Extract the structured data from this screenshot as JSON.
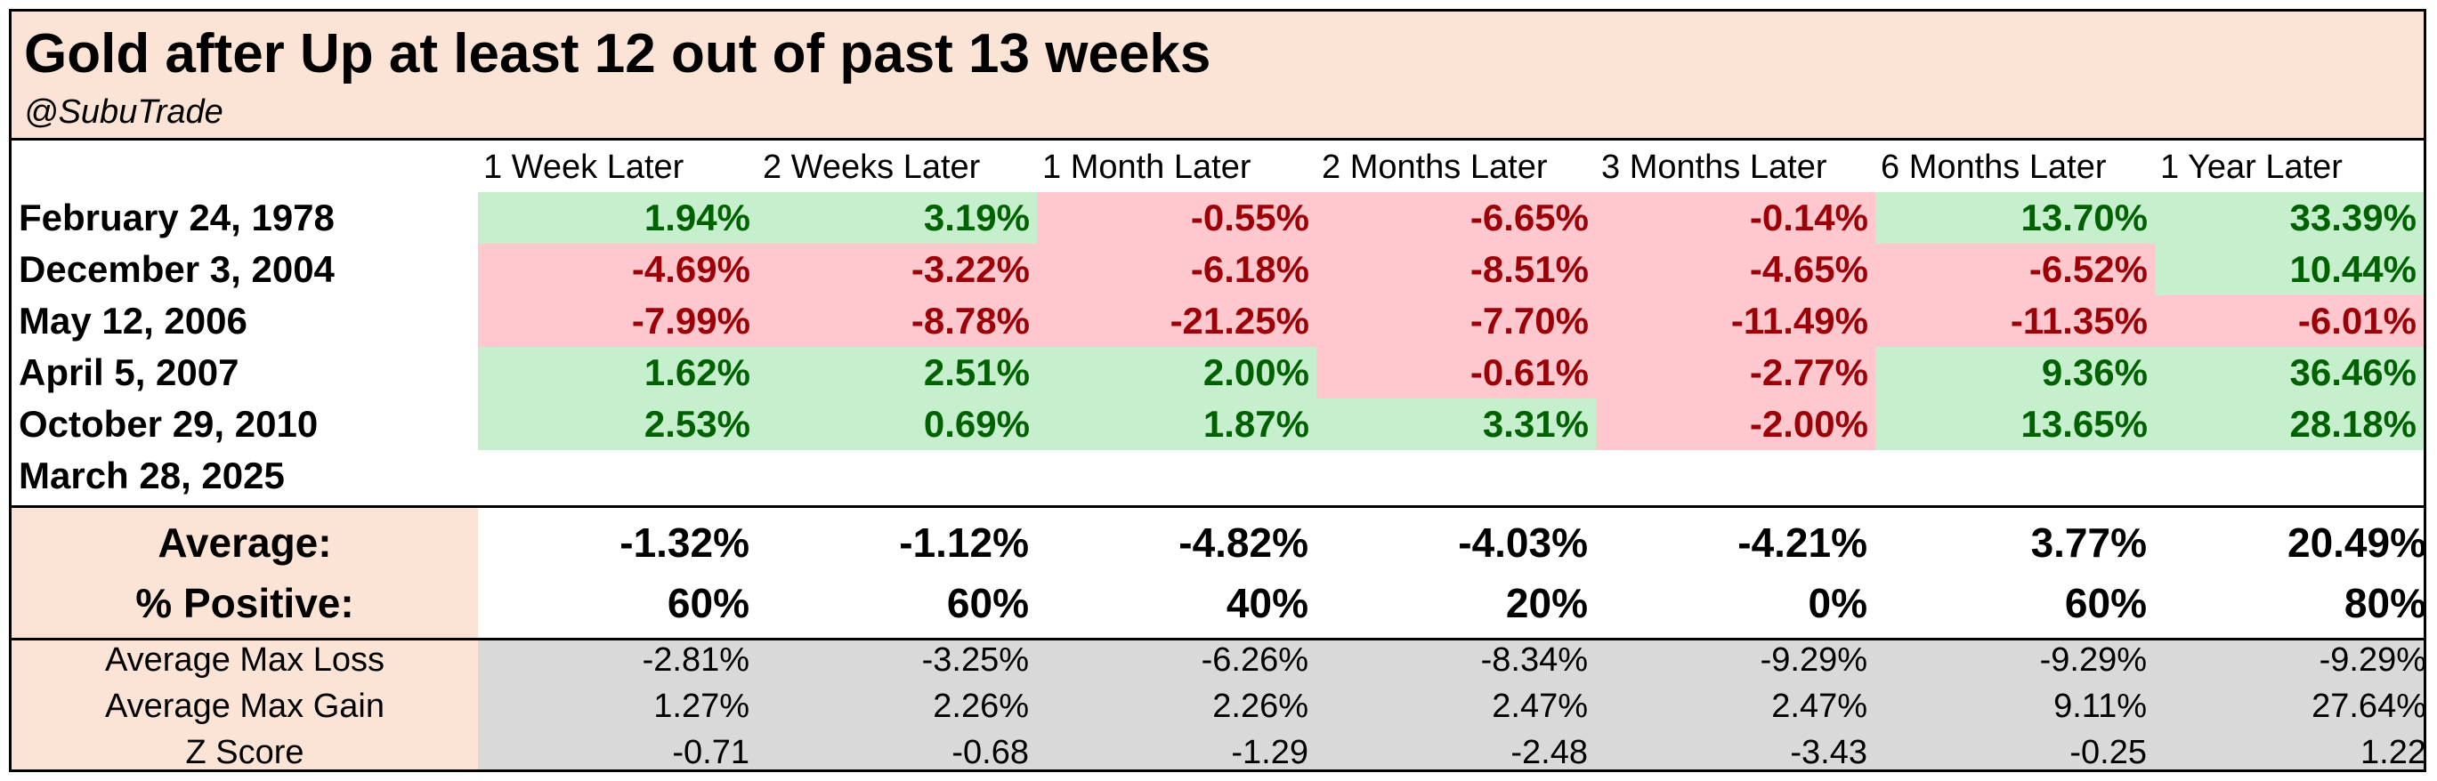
{
  "title": "Gold after Up at least 12 out of past 13 weeks",
  "subtitle": "@SubuTrade",
  "columns": [
    "1 Week Later",
    "2 Weeks Later",
    "1 Month Later",
    "2 Months Later",
    "3 Months Later",
    "6 Months Later",
    "1 Year Later"
  ],
  "rows": [
    {
      "date": "February 24, 1978",
      "values": [
        "1.94%",
        "3.19%",
        "-0.55%",
        "-6.65%",
        "-0.14%",
        "13.70%",
        "33.39%"
      ]
    },
    {
      "date": "December 3, 2004",
      "values": [
        "-4.69%",
        "-3.22%",
        "-6.18%",
        "-8.51%",
        "-4.65%",
        "-6.52%",
        "10.44%"
      ]
    },
    {
      "date": "May 12, 2006",
      "values": [
        "-7.99%",
        "-8.78%",
        "-21.25%",
        "-7.70%",
        "-11.49%",
        "-11.35%",
        "-6.01%"
      ]
    },
    {
      "date": "April 5, 2007",
      "values": [
        "1.62%",
        "2.51%",
        "2.00%",
        "-0.61%",
        "-2.77%",
        "9.36%",
        "36.46%"
      ]
    },
    {
      "date": "October 29, 2010",
      "values": [
        "2.53%",
        "0.69%",
        "1.87%",
        "3.31%",
        "-2.00%",
        "13.65%",
        "28.18%"
      ]
    },
    {
      "date": "March 28, 2025",
      "values": [
        "",
        "",
        "",
        "",
        "",
        "",
        ""
      ]
    }
  ],
  "summary": [
    {
      "label": "Average:",
      "values": [
        "-1.32%",
        "-1.12%",
        "-4.82%",
        "-4.03%",
        "-4.21%",
        "3.77%",
        "20.49%"
      ]
    },
    {
      "label": "% Positive:",
      "values": [
        "60%",
        "60%",
        "40%",
        "20%",
        "0%",
        "60%",
        "80%"
      ]
    }
  ],
  "stats": [
    {
      "label": "Average Max Loss",
      "values": [
        "-2.81%",
        "-3.25%",
        "-6.26%",
        "-8.34%",
        "-9.29%",
        "-9.29%",
        "-9.29%"
      ]
    },
    {
      "label": "Average Max Gain",
      "values": [
        "1.27%",
        "2.26%",
        "2.26%",
        "2.47%",
        "2.47%",
        "9.11%",
        "27.64%"
      ]
    },
    {
      "label": "Z Score",
      "values": [
        "-0.71",
        "-0.68",
        "-1.29",
        "-2.48",
        "-3.43",
        "-0.25",
        "1.22"
      ]
    }
  ],
  "colors": {
    "header_bg": "#fbe4d5",
    "positive_bg": "#c6efce",
    "positive_text": "#006100",
    "negative_bg": "#ffc7ce",
    "negative_text": "#9c0006",
    "stats_bg": "#d9d9d9"
  }
}
